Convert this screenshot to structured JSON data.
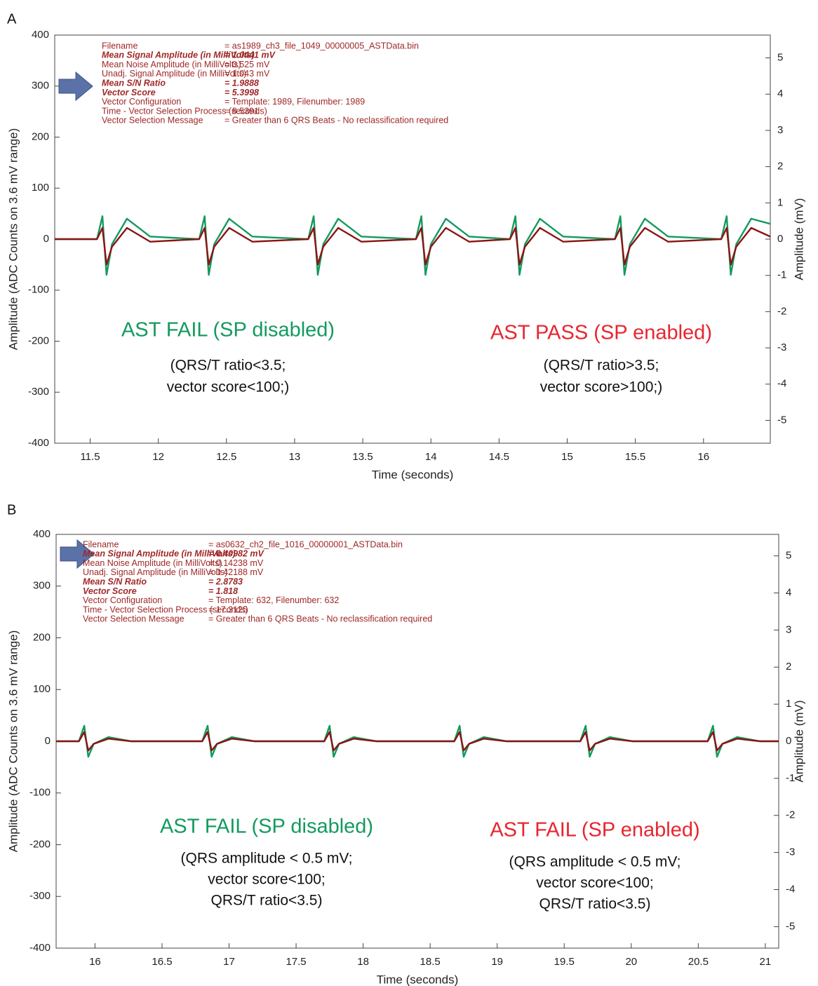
{
  "chart_data": [
    {
      "type": "line",
      "panel": "A",
      "xlabel": "Time (seconds)",
      "ylabel": "Amplitude (ADC Counts on 3.6 mV range)",
      "y2label": "Amplitude (mV)",
      "xlim": [
        11.24,
        16.49
      ],
      "xticks": [
        11.5,
        12,
        12.5,
        13,
        13.5,
        14,
        14.5,
        15,
        15.5,
        16
      ],
      "ylim": [
        -400,
        400
      ],
      "yticks": [
        -400,
        -300,
        -200,
        -100,
        0,
        100,
        200,
        300,
        400
      ],
      "y2lim": [
        -5.63,
        5.63
      ],
      "y2ticks": [
        -5,
        -4,
        -3,
        -2,
        -1,
        0,
        1,
        2,
        3,
        4,
        5
      ],
      "x": [
        11.24,
        11.55,
        11.59,
        11.62,
        11.66,
        11.77,
        11.94,
        12.3,
        12.34,
        12.37,
        12.41,
        12.52,
        12.69,
        13.1,
        13.14,
        13.17,
        13.21,
        13.32,
        13.49,
        13.89,
        13.93,
        13.96,
        14.0,
        14.11,
        14.28,
        14.58,
        14.62,
        14.65,
        14.69,
        14.8,
        14.97,
        15.35,
        15.39,
        15.42,
        15.46,
        15.57,
        15.74,
        16.13,
        16.17,
        16.2,
        16.24,
        16.35,
        16.49
      ],
      "series": [
        {
          "color": "#139a5e",
          "values": [
            0,
            0,
            45,
            -70,
            -10,
            40,
            5,
            0,
            45,
            -70,
            -10,
            40,
            5,
            0,
            45,
            -70,
            -10,
            40,
            5,
            0,
            45,
            -70,
            -10,
            40,
            5,
            0,
            45,
            -70,
            -10,
            40,
            5,
            0,
            45,
            -70,
            -10,
            40,
            5,
            0,
            45,
            -70,
            -10,
            40,
            30
          ]
        },
        {
          "color": "#8b1414",
          "values": [
            0,
            0,
            22,
            -50,
            -15,
            22,
            -5,
            0,
            22,
            -50,
            -15,
            22,
            -5,
            0,
            22,
            -50,
            -15,
            22,
            -5,
            0,
            22,
            -50,
            -15,
            22,
            -5,
            0,
            22,
            -50,
            -15,
            22,
            -5,
            0,
            22,
            -50,
            -15,
            22,
            -5,
            0,
            22,
            -50,
            -15,
            22,
            5
          ]
        }
      ],
      "info": [
        {
          "label": "Filename",
          "value": "= as1989_ch3_file_1049_00000005_ASTData.bin",
          "emphasis": false
        },
        {
          "label": "Mean Signal Amplitude (in MilliVolts)",
          "value": "= 1.0441 mV",
          "emphasis": true
        },
        {
          "label": "Mean Noise Amplitude (in MilliVolts)",
          "value": "= 0.525 mV",
          "emphasis": false
        },
        {
          "label": "Unadj. Signal Amplitude (in MilliVolts)",
          "value": "= 1.043 mV",
          "emphasis": false
        },
        {
          "label": "Mean S/N Ratio",
          "value": "= 1.9888",
          "emphasis": true
        },
        {
          "label": "Vector Score",
          "value": "= 5.3998",
          "emphasis": true
        },
        {
          "label": "Vector Configuration",
          "value": "= Template: 1989, Filenumber: 1989",
          "emphasis": false
        },
        {
          "label": "Time - Vector Selection Process (seconds)",
          "value": "= 8.5391",
          "emphasis": false
        },
        {
          "label": "Vector Selection Message",
          "value": "= Greater than 6 QRS Beats - No reclassification required",
          "emphasis": false
        }
      ],
      "results": [
        {
          "title": "AST FAIL (SP disabled)",
          "color": "#139a5e",
          "lines": [
            "(QRS/T ratio<3.5;",
            "vector score<100;)"
          ]
        },
        {
          "title": "AST PASS (SP enabled)",
          "color": "#e8252f",
          "lines": [
            "(QRS/T ratio>3.5;",
            "vector score>100;)"
          ]
        }
      ]
    },
    {
      "type": "line",
      "panel": "B",
      "xlabel": "Time (seconds)",
      "ylabel": "Amplitude (ADC Counts on 3.6 mV range)",
      "y2label": "Amplitude (mV)",
      "xlim": [
        15.71,
        21.1
      ],
      "xticks": [
        16,
        16.5,
        17,
        17.5,
        18,
        18.5,
        19,
        19.5,
        20,
        20.5,
        21
      ],
      "ylim": [
        -400,
        400
      ],
      "yticks": [
        -400,
        -300,
        -200,
        -100,
        0,
        100,
        200,
        300,
        400
      ],
      "y2lim": [
        -5.58,
        5.58
      ],
      "y2ticks": [
        -5,
        -4,
        -3,
        -2,
        -1,
        0,
        1,
        2,
        3,
        4,
        5
      ],
      "x": [
        15.71,
        15.88,
        15.92,
        15.95,
        15.99,
        16.1,
        16.27,
        16.8,
        16.84,
        16.87,
        16.91,
        17.02,
        17.19,
        17.71,
        17.75,
        17.78,
        17.82,
        17.93,
        18.1,
        18.68,
        18.72,
        18.75,
        18.79,
        18.9,
        19.07,
        19.62,
        19.66,
        19.69,
        19.73,
        19.84,
        20.01,
        20.57,
        20.61,
        20.64,
        20.68,
        20.79,
        20.96,
        21.1
      ],
      "series": [
        {
          "color": "#139a5e",
          "values": [
            0,
            0,
            30,
            -30,
            -5,
            8,
            0,
            0,
            30,
            -30,
            -5,
            8,
            0,
            0,
            30,
            -30,
            -5,
            8,
            0,
            0,
            30,
            -30,
            -5,
            8,
            0,
            0,
            30,
            -30,
            -5,
            8,
            0,
            0,
            30,
            -30,
            -5,
            8,
            0,
            0
          ]
        },
        {
          "color": "#8b1414",
          "values": [
            0,
            0,
            18,
            -18,
            -5,
            5,
            0,
            0,
            18,
            -18,
            -5,
            5,
            0,
            0,
            18,
            -18,
            -5,
            5,
            0,
            0,
            18,
            -18,
            -5,
            5,
            0,
            0,
            18,
            -18,
            -5,
            5,
            0,
            0,
            18,
            -18,
            -5,
            5,
            0,
            0
          ]
        }
      ],
      "info": [
        {
          "label": "Filename",
          "value": "= as0632_ch2_file_1016_00000001_ASTData.bin",
          "emphasis": false
        },
        {
          "label": "Mean Signal Amplitude (in MilliVolts)",
          "value": "= 0.40982 mV",
          "emphasis": true
        },
        {
          "label": "Mean Noise Amplitude (in MilliVolts)",
          "value": "= 0.14238 mV",
          "emphasis": false
        },
        {
          "label": "Unadj. Signal Amplitude (in MilliVolts)",
          "value": "= 0.42188 mV",
          "emphasis": false
        },
        {
          "label": "Mean S/N Ratio",
          "value": "= 2.8783",
          "emphasis": true
        },
        {
          "label": "Vector Score",
          "value": "= 1.818",
          "emphasis": true
        },
        {
          "label": "Vector Configuration",
          "value": "= Template: 632, Filenumber: 632",
          "emphasis": false
        },
        {
          "label": "Time - Vector Selection Process (seconds)",
          "value": "= 17.3125",
          "emphasis": false
        },
        {
          "label": "Vector Selection Message",
          "value": "= Greater than 6 QRS Beats - No reclassification required",
          "emphasis": false
        }
      ],
      "results": [
        {
          "title": "AST FAIL (SP disabled)",
          "color": "#139a5e",
          "lines": [
            "(QRS amplitude < 0.5 mV;",
            "vector score<100;",
            "QRS/T ratio<3.5)"
          ]
        },
        {
          "title": "AST FAIL (SP enabled)",
          "color": "#e8252f",
          "lines": [
            "(QRS amplitude < 0.5 mV;",
            "vector score<100;",
            "QRS/T ratio<3.5)"
          ]
        }
      ]
    }
  ]
}
